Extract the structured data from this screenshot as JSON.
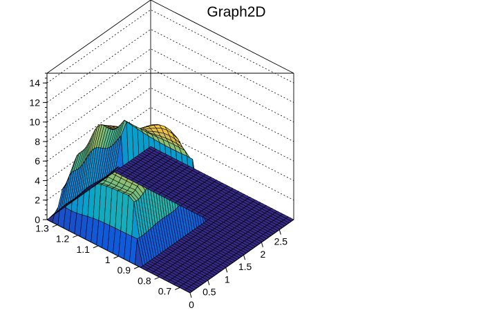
{
  "chart_data": {
    "type": "surface3d",
    "title": "Graph2D",
    "x": {
      "min": 0,
      "max": 2.9,
      "ticks": [
        0,
        0.5,
        1,
        1.5,
        2,
        2.5
      ],
      "tick_labels": [
        "0",
        "0.5",
        "1",
        "1.5",
        "2",
        "2.5"
      ]
    },
    "y": {
      "min": 0.65,
      "max": 1.35,
      "ticks": [
        0.7,
        0.8,
        0.9,
        1.0,
        1.1,
        1.2,
        1.3
      ],
      "tick_labels": [
        "0.7",
        "0.8",
        "0.9",
        "1",
        "1.1",
        "1.2",
        "1.3"
      ]
    },
    "z": {
      "min": 0,
      "max": 15,
      "ticks": [
        0,
        2,
        4,
        6,
        8,
        10,
        12,
        14
      ],
      "tick_labels": [
        "0",
        "2",
        "4",
        "6",
        "8",
        "10",
        "12",
        "14"
      ]
    },
    "grid": true,
    "palette": [
      "#352a87",
      "#0f5cdd",
      "#1481d6",
      "#06a4ca",
      "#2eb7a4",
      "#87bf77",
      "#d1bb59",
      "#fec832",
      "#f9fb0e"
    ]
  }
}
